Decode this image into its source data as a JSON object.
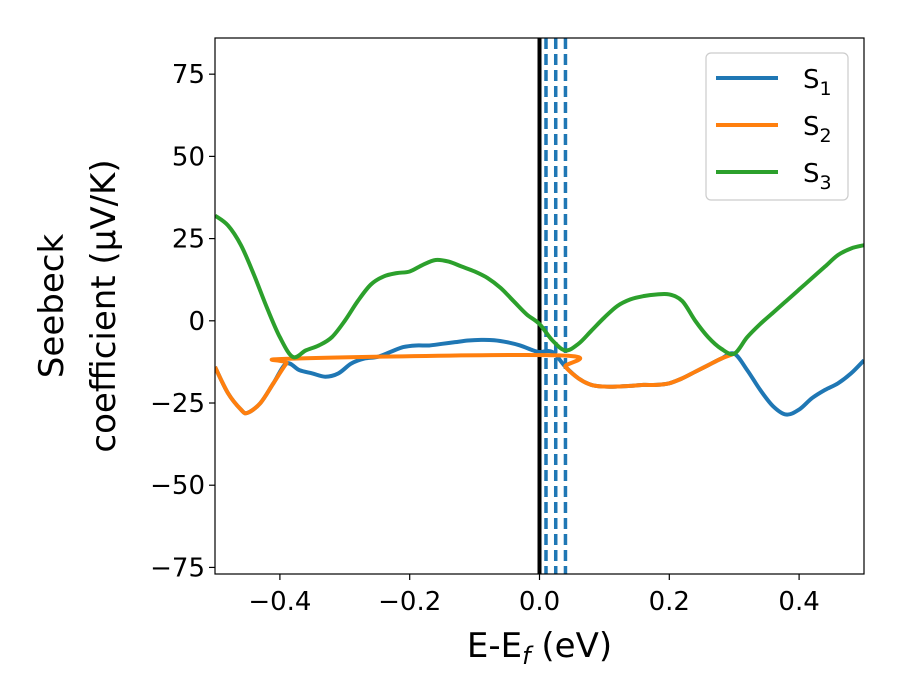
{
  "chart_data": {
    "type": "line",
    "xlabel": "E-E_f (eV)",
    "xlabel_parts": {
      "base": "E-E",
      "sub": "f",
      "unit": " (eV)"
    },
    "ylabel": "Seebeck coefficient (μV/K)",
    "ylabel_lines": [
      "Seebeck",
      "coefficient  (μV/K)"
    ],
    "xlim": [
      -0.5,
      0.5
    ],
    "ylim": [
      -77,
      86
    ],
    "xticks": [
      -0.4,
      -0.2,
      0.0,
      0.2,
      0.4
    ],
    "xtick_labels": [
      "−0.4",
      "−0.2",
      "0.0",
      "0.2",
      "0.4"
    ],
    "yticks": [
      75,
      50,
      25,
      0,
      -25,
      -50,
      -75
    ],
    "ytick_labels": [
      "75",
      "50",
      "25",
      "0",
      "−25",
      "−50",
      "−75"
    ],
    "grid": false,
    "legend_position": "top-right",
    "series": [
      {
        "name": "S_1",
        "legend_base": "S",
        "legend_sub": "1",
        "color": "#1f77b4",
        "x": [
          -0.5,
          -0.48,
          -0.46,
          -0.45,
          -0.43,
          -0.41,
          -0.39,
          -0.37,
          -0.35,
          -0.33,
          -0.31,
          -0.29,
          -0.27,
          -0.25,
          -0.23,
          -0.21,
          -0.19,
          -0.17,
          -0.15,
          -0.13,
          -0.11,
          -0.09,
          -0.07,
          -0.05,
          -0.03,
          -0.01,
          0.0,
          0.02,
          0.04,
          0.06,
          0.08,
          0.1,
          0.12,
          0.14,
          0.16,
          0.18,
          0.2,
          0.22,
          0.24,
          0.26,
          0.28,
          0.3,
          0.32,
          0.34,
          0.36,
          0.38,
          0.4,
          0.42,
          0.44,
          0.46,
          0.48,
          0.5
        ],
        "y": [
          -14,
          -22,
          -27,
          -28,
          -25,
          -19,
          -13,
          -15,
          -16,
          -17,
          -16,
          -13,
          -11.5,
          -11,
          -9.5,
          -8,
          -7.5,
          -7.5,
          -7,
          -6.5,
          -6,
          -5.8,
          -5.9,
          -6.5,
          -7.5,
          -9,
          -9.5,
          -9.5,
          -14,
          -17.5,
          -19.5,
          -20,
          -20,
          -19.8,
          -19.5,
          -19.5,
          -19,
          -17.5,
          -15.5,
          -13.5,
          -11.5,
          -10,
          -15,
          -21,
          -26,
          -28.5,
          -27,
          -23.5,
          -21,
          -19,
          -16,
          -12
        ]
      },
      {
        "name": "S_2",
        "legend_base": "S",
        "legend_sub": "2",
        "color": "#ff7f0e",
        "x": [
          -0.5,
          -0.48,
          -0.46,
          -0.45,
          -0.43,
          -0.41,
          -0.39,
          -0.38,
          0.03,
          0.04,
          0.06,
          0.08,
          0.1,
          0.12,
          0.14,
          0.16,
          0.18,
          0.2,
          0.22,
          0.24,
          0.26,
          0.28,
          0.3
        ],
        "y": [
          -14,
          -22,
          -27,
          -28,
          -25,
          -19,
          -13,
          -11.5,
          -10.5,
          -14,
          -17.5,
          -19.5,
          -20,
          -20,
          -19.8,
          -19.5,
          -19.5,
          -19,
          -17.5,
          -15.5,
          -13.5,
          -11.5,
          -10
        ]
      },
      {
        "name": "S_3",
        "legend_base": "S",
        "legend_sub": "3",
        "color": "#2ca02c",
        "x": [
          -0.5,
          -0.48,
          -0.46,
          -0.44,
          -0.42,
          -0.4,
          -0.38,
          -0.36,
          -0.34,
          -0.32,
          -0.3,
          -0.28,
          -0.26,
          -0.24,
          -0.22,
          -0.2,
          -0.18,
          -0.16,
          -0.14,
          -0.12,
          -0.1,
          -0.08,
          -0.06,
          -0.04,
          -0.02,
          0.0,
          0.02,
          0.04,
          0.06,
          0.08,
          0.1,
          0.12,
          0.14,
          0.16,
          0.18,
          0.2,
          0.22,
          0.24,
          0.26,
          0.28,
          0.3,
          0.32,
          0.34,
          0.36,
          0.38,
          0.4,
          0.42,
          0.44,
          0.46,
          0.48,
          0.5
        ],
        "y": [
          32,
          29,
          23,
          14,
          4,
          -5,
          -11,
          -9,
          -7.5,
          -5,
          0,
          6,
          11,
          13.5,
          14.5,
          15,
          17,
          18.5,
          18,
          16.5,
          15,
          13,
          10,
          6,
          2,
          -1,
          -6,
          -9,
          -7,
          -3,
          1,
          4.5,
          6.5,
          7.5,
          8,
          8,
          6,
          0,
          -5,
          -8.5,
          -10,
          -5,
          -1,
          2.5,
          6,
          9.5,
          13,
          16.5,
          20,
          22,
          23
        ]
      }
    ],
    "vertical_lines": [
      {
        "x": 0.0,
        "style": "solid",
        "color": "#000000"
      },
      {
        "x": 0.01,
        "style": "dashed",
        "color": "#1f77b4"
      },
      {
        "x": 0.025,
        "style": "dashed",
        "color": "#1f77b4"
      },
      {
        "x": 0.04,
        "style": "dashed",
        "color": "#1f77b4"
      }
    ]
  }
}
